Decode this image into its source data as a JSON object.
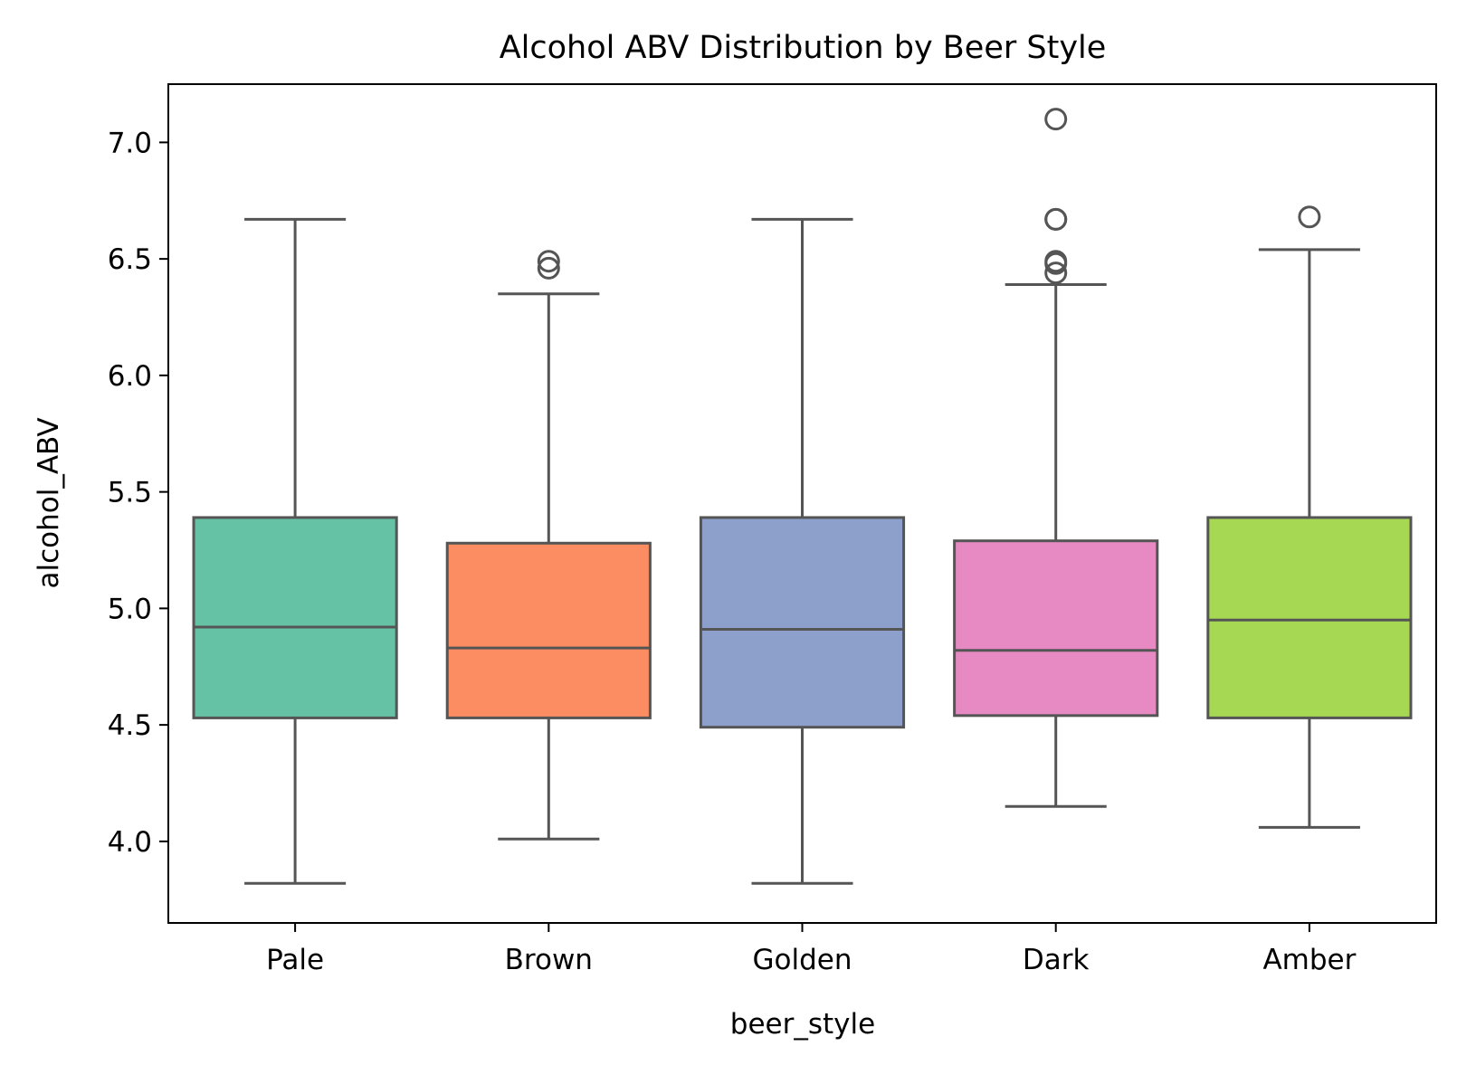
{
  "chart_data": {
    "type": "box",
    "title": "Alcohol ABV Distribution by Beer Style",
    "xlabel": "beer_style",
    "ylabel": "alcohol_ABV",
    "ylim": [
      3.65,
      7.25
    ],
    "yticks": [
      4.0,
      4.5,
      5.0,
      5.5,
      6.0,
      6.5,
      7.0
    ],
    "ytick_labels": [
      "4.0",
      "4.5",
      "5.0",
      "5.5",
      "6.0",
      "6.5",
      "7.0"
    ],
    "grid": false,
    "categories": [
      "Pale",
      "Brown",
      "Golden",
      "Dark",
      "Amber"
    ],
    "colors": [
      "#66c2a5",
      "#fc8d62",
      "#8da0cb",
      "#e78ac3",
      "#a6d854"
    ],
    "edge_color": "#555555",
    "boxes": [
      {
        "category": "Pale",
        "whisker_low": 3.82,
        "q1": 4.53,
        "median": 4.92,
        "q3": 5.39,
        "whisker_high": 6.67,
        "outliers": []
      },
      {
        "category": "Brown",
        "whisker_low": 4.01,
        "q1": 4.53,
        "median": 4.83,
        "q3": 5.28,
        "whisker_high": 6.35,
        "outliers": [
          6.46,
          6.49
        ]
      },
      {
        "category": "Golden",
        "whisker_low": 3.82,
        "q1": 4.49,
        "median": 4.91,
        "q3": 5.39,
        "whisker_high": 6.67,
        "outliers": []
      },
      {
        "category": "Dark",
        "whisker_low": 4.15,
        "q1": 4.54,
        "median": 4.82,
        "q3": 5.29,
        "whisker_high": 6.39,
        "outliers": [
          6.44,
          6.48,
          6.49,
          6.67,
          6.67,
          7.1
        ]
      },
      {
        "category": "Amber",
        "whisker_low": 4.06,
        "q1": 4.53,
        "median": 4.95,
        "q3": 5.39,
        "whisker_high": 6.54,
        "outliers": [
          6.68
        ]
      }
    ]
  }
}
